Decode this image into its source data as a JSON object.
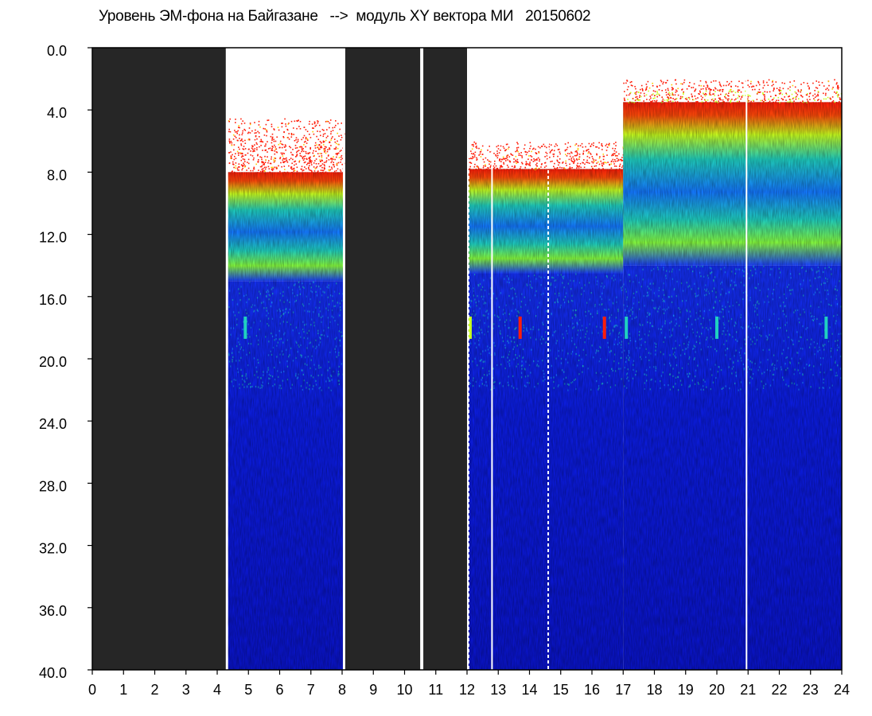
{
  "chart_data": {
    "type": "heatmap",
    "title": "Уровень ЭМ-фона на Байгазане   -->  модуль XY вектора МИ   20150602",
    "xlabel": "",
    "ylabel": "",
    "xlim": [
      0,
      24
    ],
    "ylim": [
      40,
      0
    ],
    "x_ticks": [
      "0",
      "1",
      "2",
      "3",
      "4",
      "5",
      "6",
      "7",
      "8",
      "9",
      "10",
      "11",
      "12",
      "13",
      "14",
      "15",
      "16",
      "17",
      "18",
      "19",
      "20",
      "21",
      "22",
      "23",
      "24"
    ],
    "y_ticks": [
      "0.0",
      "4.0",
      "8.0",
      "12.0",
      "16.0",
      "20.0",
      "24.0",
      "28.0",
      "32.0",
      "36.0",
      "40.0"
    ],
    "colors": {
      "no_data": "#262626",
      "empty": "#ffffff",
      "low": "#0a14e0",
      "mid_low": "#1478ff",
      "mid": "#20d0c0",
      "mid_high": "#c8ff20",
      "high": "#ff1e0a"
    },
    "no_data_intervals": [
      [
        0.0,
        4.3
      ],
      [
        8.1,
        10.5
      ],
      [
        10.6,
        12.0
      ]
    ],
    "data_gaps": [
      {
        "x": 4.3,
        "style": "solid"
      },
      {
        "x": 8.05,
        "style": "solid"
      },
      {
        "x": 10.55,
        "style": "dashed"
      },
      {
        "x": 12.05,
        "style": "dashed"
      },
      {
        "x": 12.8,
        "style": "solid"
      },
      {
        "x": 14.6,
        "style": "dashed"
      },
      {
        "x": 20.95,
        "style": "solid"
      }
    ],
    "bands": [
      {
        "x0": 4.35,
        "x1": 8.05,
        "red_top": 4.5,
        "red_dense": 8.0,
        "green_top": 8.5,
        "cyan_top": 10.0,
        "blue_top": 15.0
      },
      {
        "x0": 12.05,
        "x1": 17.0,
        "red_top": 6.0,
        "red_dense": 7.8,
        "green_top": 8.5,
        "cyan_top": 10.0,
        "blue_top": 14.5
      },
      {
        "x0": 17.0,
        "x1": 24.0,
        "red_top": 2.0,
        "red_dense": 3.5,
        "green_top": 5.0,
        "cyan_top": 9.0,
        "blue_top": 14.0
      }
    ],
    "spots": [
      {
        "x": 13.7,
        "y": 18.0,
        "level": "high"
      },
      {
        "x": 16.4,
        "y": 18.0,
        "level": "high"
      },
      {
        "x": 17.1,
        "y": 18.0,
        "level": "mid"
      },
      {
        "x": 20.0,
        "y": 18.0,
        "level": "mid"
      },
      {
        "x": 23.5,
        "y": 18.0,
        "level": "mid"
      },
      {
        "x": 4.9,
        "y": 18.0,
        "level": "mid"
      },
      {
        "x": 12.1,
        "y": 18.0,
        "level": "mid_high"
      }
    ],
    "grid": false,
    "legend": "none"
  }
}
